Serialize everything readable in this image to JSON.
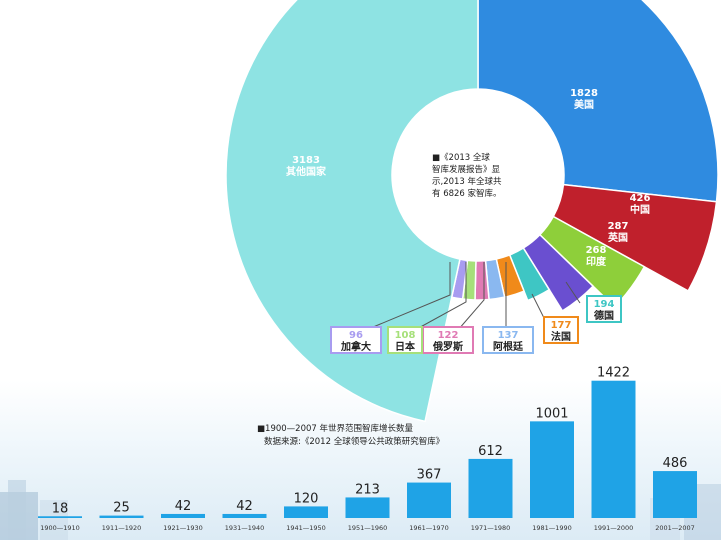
{
  "chart_data": [
    {
      "type": "pie",
      "title": "",
      "center_note": [
        "■《2013 全球",
        "智库发展报告》显",
        "示,2013 年全球共",
        "有 6826 家智库。"
      ],
      "slices": [
        {
          "label": "美国",
          "value": 1828,
          "color": "#2f8be0"
        },
        {
          "label": "中国",
          "value": 426,
          "color": "#c0202c"
        },
        {
          "label": "英国",
          "value": 287,
          "color": "#8ecf3a"
        },
        {
          "label": "印度",
          "value": 268,
          "color": "#6a4fd0"
        },
        {
          "label": "德国",
          "value": 194,
          "color": "#3ec6c4"
        },
        {
          "label": "法国",
          "value": 177,
          "color": "#f08a1a"
        },
        {
          "label": "阿根廷",
          "value": 137,
          "color": "#8ab8f0"
        },
        {
          "label": "俄罗斯",
          "value": 122,
          "color": "#e07ab4"
        },
        {
          "label": "日本",
          "value": 108,
          "color": "#a6e07a"
        },
        {
          "label": "加拿大",
          "value": 96,
          "color": "#a89cf0"
        },
        {
          "label": "其他国家",
          "value": 3183,
          "color": "#8ee3e3"
        }
      ]
    },
    {
      "type": "bar",
      "title": "■1900—2007 年世界范围智库增长数量",
      "subtitle": "数据来源:《2012 全球领导公共政策研究智库》",
      "xlabel": "",
      "ylabel": "",
      "ylim": [
        0,
        1450
      ],
      "categories": [
        "1900—1910",
        "1911—1920",
        "1921—1930",
        "1931—1940",
        "1941—1950",
        "1951—1960",
        "1961—1970",
        "1971—1980",
        "1981—1990",
        "1991—2000",
        "2001—2007"
      ],
      "values": [
        18,
        25,
        42,
        42,
        120,
        213,
        367,
        612,
        1001,
        1422,
        486
      ],
      "bar_color": "#1fa3e6"
    }
  ]
}
